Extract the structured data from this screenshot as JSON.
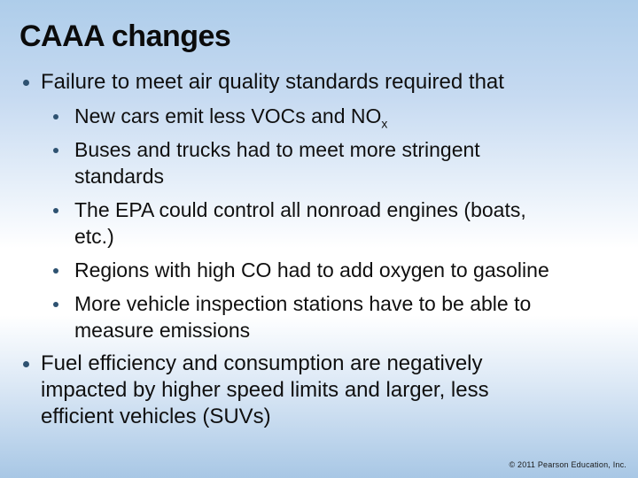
{
  "slide": {
    "title": "CAAA changes",
    "bullets": [
      {
        "level": 1,
        "text": "Failure to meet air quality standards required that"
      },
      {
        "level": 2,
        "text": "New cars emit less VOCs and NO",
        "subscript": "x"
      },
      {
        "level": 2,
        "text": "Buses and trucks had to meet more stringent\nstandards"
      },
      {
        "level": 2,
        "text": "The EPA could control all nonroad engines (boats,\netc.)"
      },
      {
        "level": 2,
        "text": "Regions with high CO had to add oxygen to gasoline"
      },
      {
        "level": 2,
        "text": "More vehicle inspection stations have to be able to\nmeasure emissions"
      },
      {
        "level": 1,
        "text": "Fuel efficiency and consumption are negatively\nimpacted by higher speed limits and larger, less\nefficient vehicles (SUVs)"
      }
    ],
    "footer": "© 2011 Pearson Education, Inc.",
    "colors": {
      "bg_top": "#aecdea",
      "bg_mid": "#ffffff",
      "bg_bottom": "#a8c7e5",
      "bullet": "#2e5271",
      "text": "#101010"
    }
  }
}
